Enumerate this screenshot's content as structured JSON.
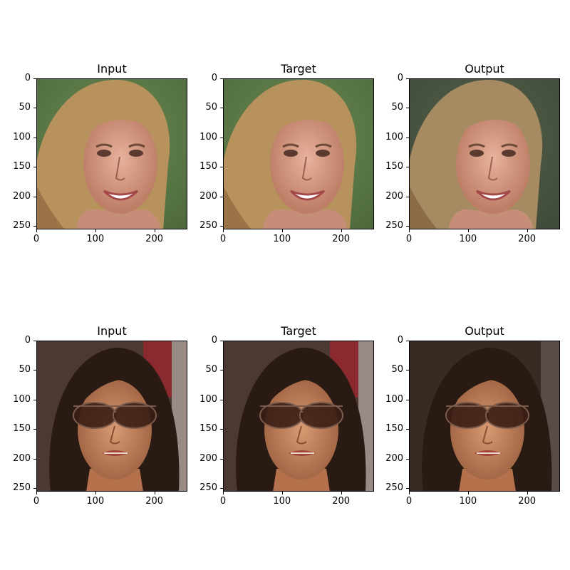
{
  "rows": [
    {
      "panels": [
        {
          "title": "Input",
          "image": "smiling blonde woman face, green background"
        },
        {
          "title": "Target",
          "image": "smiling blonde woman face, green background"
        },
        {
          "title": "Output",
          "image": "smiling blonde woman face, generated"
        }
      ]
    },
    {
      "panels": [
        {
          "title": "Input",
          "image": "dark-haired woman wearing aviator sunglasses"
        },
        {
          "title": "Target",
          "image": "dark-haired woman wearing aviator sunglasses"
        },
        {
          "title": "Output",
          "image": "dark-haired woman wearing aviator sunglasses, generated"
        }
      ]
    }
  ],
  "axes": {
    "yticks": [
      "0",
      "50",
      "100",
      "150",
      "200",
      "250"
    ],
    "xticks": [
      "0",
      "100",
      "200"
    ],
    "ytick_values": [
      0,
      50,
      100,
      150,
      200,
      250
    ],
    "xtick_values": [
      0,
      100,
      200
    ],
    "xlim": [
      0,
      256
    ],
    "ylim": [
      256,
      0
    ]
  }
}
